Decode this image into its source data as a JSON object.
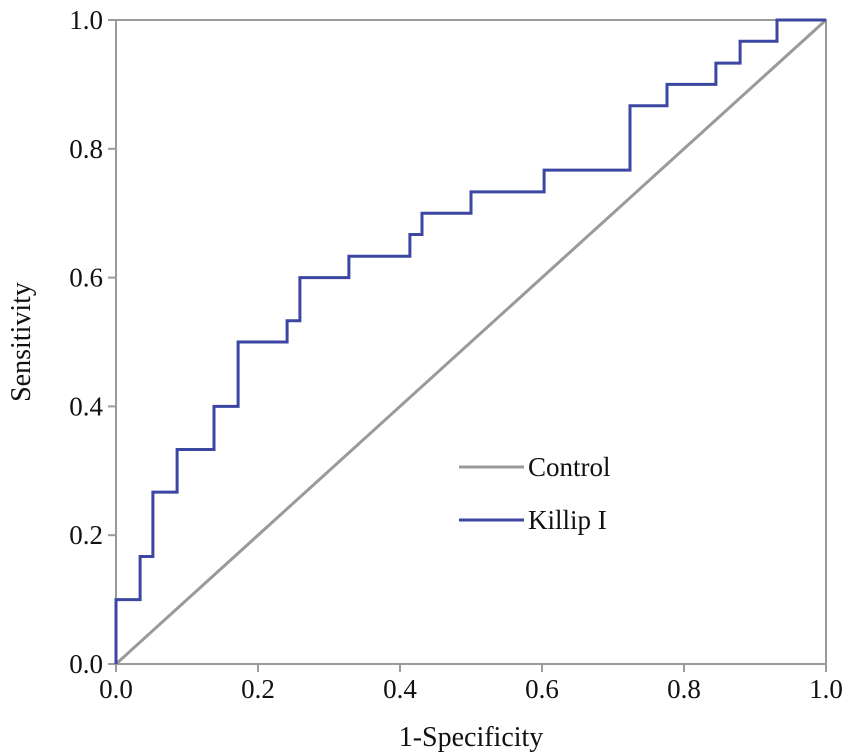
{
  "chart_data": {
    "type": "line",
    "title": "",
    "xlabel": "1-Specificity",
    "ylabel": "Sensitivity",
    "xlim": [
      0,
      1
    ],
    "ylim": [
      0,
      1
    ],
    "x_ticks": [
      "0.0",
      "0.2",
      "0.4",
      "0.6",
      "0.8",
      "1.0"
    ],
    "y_ticks": [
      "0.0",
      "0.2",
      "0.4",
      "0.6",
      "0.8",
      "1.0"
    ],
    "grid": false,
    "legend_position": "center-right",
    "series": [
      {
        "name": "Control",
        "color": "#9a9a9a",
        "x": [
          0,
          1
        ],
        "y": [
          0,
          1
        ]
      },
      {
        "name": "Killip I",
        "color": "#3b47a3",
        "x": [
          0,
          0,
          0.034,
          0.034,
          0.052,
          0.052,
          0.086,
          0.086,
          0.138,
          0.138,
          0.172,
          0.172,
          0.241,
          0.241,
          0.259,
          0.259,
          0.328,
          0.328,
          0.414,
          0.414,
          0.431,
          0.431,
          0.5,
          0.5,
          0.603,
          0.603,
          0.724,
          0.724,
          0.776,
          0.776,
          0.845,
          0.845,
          0.879,
          0.879,
          0.931,
          0.931,
          1.0
        ],
        "y": [
          0,
          0.1,
          0.1,
          0.167,
          0.167,
          0.267,
          0.267,
          0.333,
          0.333,
          0.4,
          0.4,
          0.5,
          0.5,
          0.533,
          0.533,
          0.6,
          0.6,
          0.633,
          0.633,
          0.667,
          0.667,
          0.7,
          0.7,
          0.733,
          0.733,
          0.767,
          0.767,
          0.867,
          0.867,
          0.9,
          0.9,
          0.933,
          0.933,
          0.967,
          0.967,
          1.0,
          1.0
        ]
      }
    ]
  }
}
